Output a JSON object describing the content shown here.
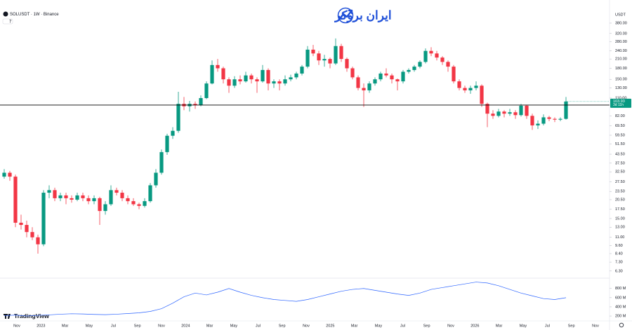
{
  "chart_data": {
    "type": "candlestick",
    "title": "SOLUSDT · 1W · Binance",
    "indicator_count": "7",
    "brand": "ایران بروکر",
    "watermark": "TradingView",
    "currency": "USDT",
    "last_price": {
      "value": 103.93,
      "label": "103.93"
    },
    "countdown": "3d 11h",
    "horizontal_line": 98,
    "log_scale": true,
    "up_color": "#089981",
    "down_color": "#f23645",
    "ylim": [
      5.73,
      468
    ],
    "yticks": [
      {
        "value": 6.3,
        "label": "6.30"
      },
      {
        "value": 7.3,
        "label": "7.30"
      },
      {
        "value": 8.4,
        "label": "8.40"
      },
      {
        "value": 9.6,
        "label": "9.60"
      },
      {
        "value": 11,
        "label": "11.00"
      },
      {
        "value": 13,
        "label": "13.00"
      },
      {
        "value": 15,
        "label": "15.00"
      },
      {
        "value": 17.5,
        "label": "17.50"
      },
      {
        "value": 20.5,
        "label": "20.50"
      },
      {
        "value": 23.5,
        "label": "23.50"
      },
      {
        "value": 27.5,
        "label": "27.50"
      },
      {
        "value": 32.5,
        "label": "32.50"
      },
      {
        "value": 37.5,
        "label": "37.50"
      },
      {
        "value": 43.5,
        "label": "43.50"
      },
      {
        "value": 51.5,
        "label": "51.50"
      },
      {
        "value": 59.5,
        "label": "59.50"
      },
      {
        "value": 69.5,
        "label": "69.50"
      },
      {
        "value": 82,
        "label": "82.00"
      },
      {
        "value": 110,
        "label": "110.00"
      },
      {
        "value": 130,
        "label": "130.00"
      },
      {
        "value": 150,
        "label": "150.00"
      },
      {
        "value": 180,
        "label": "180.00"
      },
      {
        "value": 210,
        "label": "210.00"
      },
      {
        "value": 240,
        "label": "240.00"
      },
      {
        "value": 280,
        "label": "280.00"
      },
      {
        "value": 320,
        "label": "320.00"
      },
      {
        "value": 380,
        "label": "380.00"
      }
    ],
    "x_labels": [
      "Nov",
      "2023",
      "Mar",
      "May",
      "Jul",
      "Sep",
      "Nov",
      "2024",
      "Mar",
      "May",
      "Jul",
      "Sep",
      "Nov",
      "2025",
      "Mar",
      "May",
      "Jul",
      "Sep",
      "Nov",
      "2026",
      "Mar",
      "May",
      "Jul",
      "Sep",
      "Nov"
    ],
    "candles": [
      [
        30,
        34,
        29,
        32
      ],
      [
        32,
        33,
        28,
        30
      ],
      [
        30,
        31,
        13,
        14
      ],
      [
        14,
        16,
        12.5,
        13.5
      ],
      [
        13.5,
        14.5,
        11,
        12
      ],
      [
        12,
        13,
        10.5,
        11
      ],
      [
        11,
        11.5,
        8.4,
        9.8
      ],
      [
        9.8,
        24,
        9.5,
        23
      ],
      [
        23,
        26,
        21,
        24
      ],
      [
        24,
        25,
        20,
        21
      ],
      [
        21,
        23,
        20,
        22
      ],
      [
        22,
        23,
        19,
        21
      ],
      [
        21,
        22,
        19.5,
        20.5
      ],
      [
        20.5,
        23,
        20,
        22
      ],
      [
        22,
        23,
        20,
        21
      ],
      [
        21,
        22,
        19,
        20
      ],
      [
        20,
        22,
        19,
        21
      ],
      [
        21,
        21.5,
        13.5,
        17
      ],
      [
        17,
        20,
        16,
        19
      ],
      [
        19,
        26,
        18.5,
        24
      ],
      [
        24,
        25,
        22,
        23
      ],
      [
        23,
        24,
        20,
        21
      ],
      [
        21,
        22,
        19,
        20
      ],
      [
        20,
        21,
        18.5,
        19
      ],
      [
        19,
        19.5,
        17.5,
        18.5
      ],
      [
        18.5,
        21,
        18,
        20
      ],
      [
        20,
        27,
        19.5,
        26
      ],
      [
        26,
        34,
        25,
        32
      ],
      [
        32,
        47,
        31,
        45
      ],
      [
        45,
        61,
        43,
        59
      ],
      [
        59,
        68,
        56,
        64
      ],
      [
        64,
        122,
        62,
        100
      ],
      [
        100,
        112,
        90,
        96
      ],
      [
        96,
        105,
        88,
        100
      ],
      [
        100,
        104,
        92,
        98
      ],
      [
        98,
        115,
        96,
        110
      ],
      [
        110,
        145,
        108,
        140
      ],
      [
        140,
        205,
        138,
        190
      ],
      [
        190,
        210,
        170,
        180
      ],
      [
        180,
        185,
        140,
        150
      ],
      [
        150,
        155,
        120,
        135
      ],
      [
        135,
        158,
        130,
        150
      ],
      [
        150,
        160,
        138,
        145
      ],
      [
        145,
        170,
        142,
        160
      ],
      [
        160,
        165,
        140,
        150
      ],
      [
        150,
        155,
        120,
        145
      ],
      [
        145,
        190,
        142,
        175
      ],
      [
        175,
        180,
        125,
        140
      ],
      [
        140,
        150,
        130,
        145
      ],
      [
        145,
        150,
        125,
        140
      ],
      [
        140,
        160,
        135,
        150
      ],
      [
        150,
        162,
        145,
        155
      ],
      [
        155,
        170,
        150,
        165
      ],
      [
        165,
        190,
        160,
        185
      ],
      [
        185,
        260,
        180,
        245
      ],
      [
        245,
        265,
        220,
        230
      ],
      [
        230,
        240,
        190,
        205
      ],
      [
        205,
        225,
        185,
        210
      ],
      [
        210,
        215,
        180,
        195
      ],
      [
        195,
        295,
        190,
        260
      ],
      [
        260,
        270,
        200,
        210
      ],
      [
        210,
        215,
        170,
        180
      ],
      [
        180,
        185,
        150,
        155
      ],
      [
        155,
        160,
        125,
        130
      ],
      [
        130,
        140,
        95,
        125
      ],
      [
        125,
        145,
        120,
        140
      ],
      [
        140,
        155,
        135,
        150
      ],
      [
        150,
        170,
        145,
        165
      ],
      [
        165,
        180,
        155,
        160
      ],
      [
        160,
        165,
        140,
        150
      ],
      [
        150,
        152,
        125,
        145
      ],
      [
        145,
        175,
        140,
        170
      ],
      [
        170,
        180,
        165,
        175
      ],
      [
        175,
        190,
        170,
        185
      ],
      [
        185,
        205,
        180,
        200
      ],
      [
        200,
        250,
        195,
        240
      ],
      [
        240,
        255,
        220,
        230
      ],
      [
        230,
        240,
        205,
        215
      ],
      [
        215,
        220,
        190,
        200
      ],
      [
        200,
        205,
        170,
        185
      ],
      [
        185,
        190,
        140,
        145
      ],
      [
        145,
        150,
        125,
        130
      ],
      [
        130,
        135,
        120,
        125
      ],
      [
        125,
        135,
        118,
        130
      ],
      [
        130,
        145,
        125,
        135
      ],
      [
        135,
        138,
        95,
        100
      ],
      [
        100,
        102,
        68,
        85
      ],
      [
        85,
        90,
        78,
        82
      ],
      [
        82,
        92,
        80,
        88
      ],
      [
        88,
        90,
        80,
        85
      ],
      [
        85,
        92,
        82,
        87
      ],
      [
        87,
        90,
        78,
        83
      ],
      [
        83,
        100,
        81,
        97
      ],
      [
        97,
        98,
        78,
        82
      ],
      [
        82,
        85,
        65,
        70
      ],
      [
        70,
        76,
        66,
        72
      ],
      [
        72,
        84,
        70,
        80
      ],
      [
        80,
        82,
        75,
        78
      ],
      [
        78,
        80,
        74,
        77
      ],
      [
        77,
        80,
        75,
        78
      ],
      [
        78,
        112,
        77,
        103.93
      ]
    ],
    "volume": {
      "color": "#2962ff",
      "ylim": [
        140,
        1010
      ],
      "yticks": [
        {
          "value": 200,
          "label": "200 M"
        },
        {
          "value": 400,
          "label": "400 M"
        },
        {
          "value": 600,
          "label": "600 M"
        },
        {
          "value": 800,
          "label": "800 M"
        }
      ],
      "values": [
        210,
        220,
        200,
        215,
        225,
        240,
        250,
        245,
        235,
        230,
        240,
        255,
        270,
        300,
        360,
        480,
        620,
        700,
        660,
        720,
        800,
        720,
        650,
        600,
        560,
        540,
        520,
        560,
        620,
        680,
        740,
        780,
        800,
        760,
        720,
        680,
        650,
        700,
        780,
        820,
        860,
        900,
        940,
        920,
        860,
        780,
        700,
        640,
        580,
        560,
        600
      ]
    }
  }
}
